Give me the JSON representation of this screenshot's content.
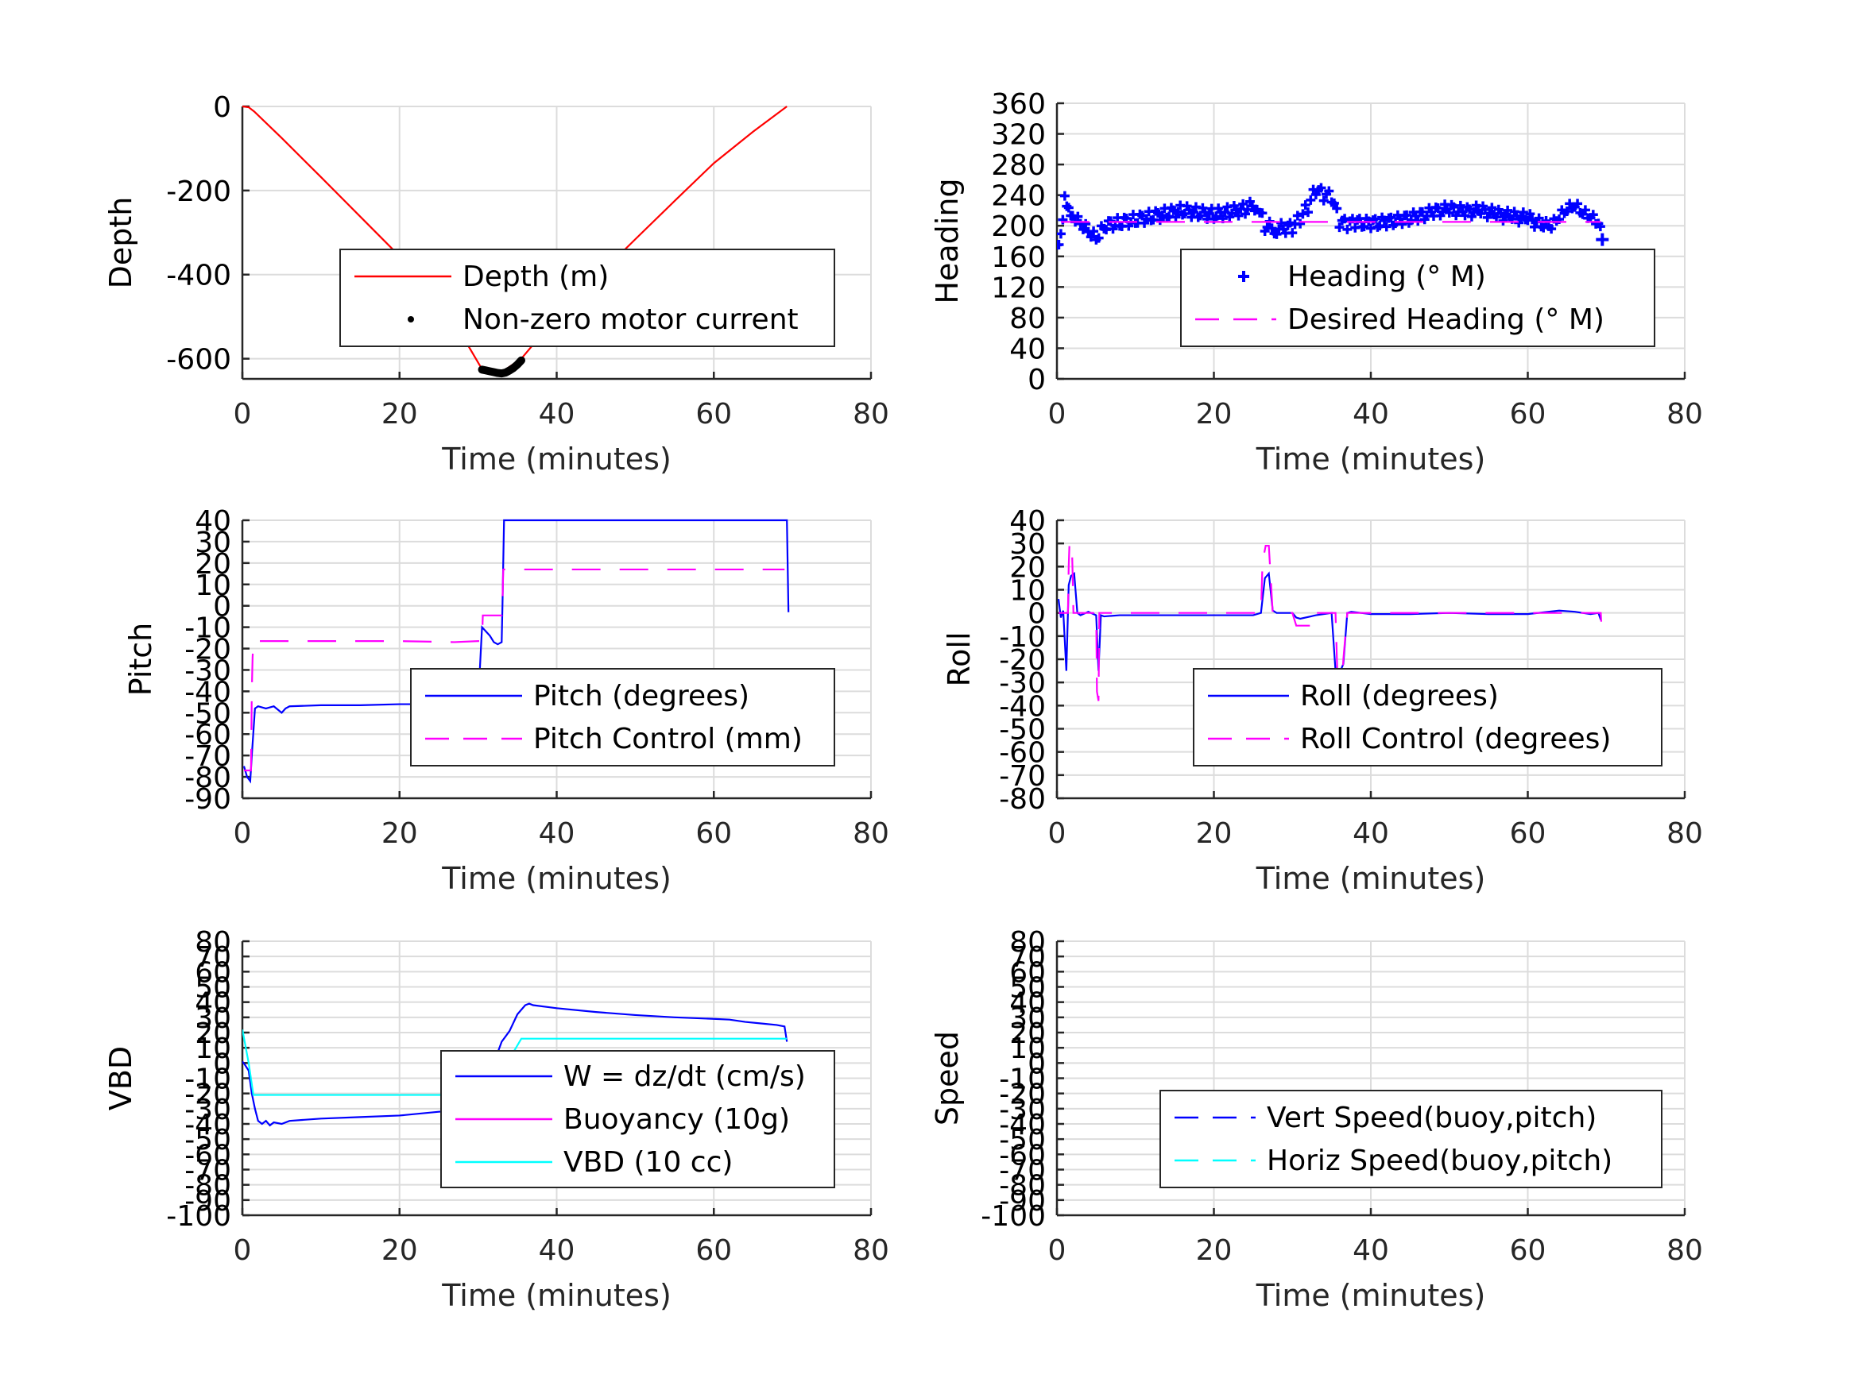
{
  "chart_data": [
    {
      "id": "depth",
      "type": "line",
      "title": "",
      "xlabel": "Time (minutes)",
      "ylabel": "Depth",
      "xlim": [
        0,
        80
      ],
      "ylim": [
        -648,
        0
      ],
      "xticks": [
        0,
        20,
        40,
        60,
        80
      ],
      "yticks": [
        0,
        -200,
        -400,
        -600
      ],
      "ytick_labels": [
        "0",
        "-200",
        "-400",
        "-600"
      ],
      "grid": true,
      "legend": "center-right",
      "series": [
        {
          "name": "Depth (m)",
          "color": "#ff0000",
          "style": "solid",
          "marker": "none",
          "x": [
            0,
            0.8,
            1.5,
            5,
            10,
            15,
            20,
            25,
            30.5,
            33,
            35.5,
            40,
            45,
            50,
            55,
            60,
            65,
            69.3
          ],
          "y": [
            0,
            -2,
            -12,
            -75,
            -168,
            -262,
            -356,
            -450,
            -625,
            -632,
            -600,
            -500,
            -408,
            -316,
            -225,
            -135,
            -60,
            0
          ]
        },
        {
          "name": "Non-zero motor current",
          "color": "#000000",
          "style": "none",
          "marker": "dot",
          "x": [
            30.5,
            31,
            31.5,
            32,
            32.5,
            33,
            33.5,
            34,
            34.5,
            35,
            35.5
          ],
          "y": [
            -626,
            -628,
            -630,
            -632,
            -634,
            -635,
            -633,
            -628,
            -622,
            -614,
            -604
          ]
        }
      ]
    },
    {
      "id": "heading",
      "type": "scatter",
      "title": "",
      "xlabel": "Time (minutes)",
      "ylabel": "Heading",
      "xlim": [
        0,
        80
      ],
      "ylim": [
        0,
        360
      ],
      "xticks": [
        0,
        20,
        40,
        60,
        80
      ],
      "yticks": [
        0,
        40,
        80,
        120,
        160,
        200,
        240,
        280,
        320,
        360
      ],
      "ytick_labels": [
        "0",
        "40",
        "80",
        "120",
        "160",
        "200",
        "240",
        "280",
        "320",
        "360"
      ],
      "grid": true,
      "legend": "center-right",
      "series": [
        {
          "name": "Heading (° M)",
          "color": "#0000ff",
          "style": "none",
          "marker": "plus",
          "x": [
            0,
            0.5,
            1,
            1.5,
            2,
            3,
            4,
            5,
            6,
            8,
            10,
            12,
            14,
            16,
            18,
            20,
            22,
            24,
            25.5,
            26.5,
            28,
            30,
            31,
            32,
            33,
            34,
            35,
            36,
            37,
            38,
            40,
            42,
            44,
            46,
            48,
            50,
            52,
            54,
            56,
            58,
            60,
            62,
            63,
            64,
            65,
            66,
            67,
            68,
            69,
            69.5
          ],
          "y": [
            175,
            190,
            240,
            225,
            215,
            205,
            195,
            185,
            200,
            204,
            208,
            212,
            216,
            220,
            217,
            215,
            218,
            222,
            228,
            200,
            196,
            198,
            210,
            225,
            248,
            240,
            238,
            205,
            202,
            204,
            203,
            205,
            208,
            212,
            218,
            222,
            218,
            220,
            215,
            212,
            210,
            200,
            198,
            210,
            220,
            225,
            215,
            210,
            202,
            182
          ]
        },
        {
          "name": "Desired Heading (° M)",
          "color": "#ff00ff",
          "style": "dashed",
          "marker": "none",
          "x": [
            0.5,
            69.3
          ],
          "y": [
            205,
            205
          ]
        }
      ]
    },
    {
      "id": "pitch",
      "type": "line",
      "title": "",
      "xlabel": "Time (minutes)",
      "ylabel": "Pitch",
      "xlim": [
        0,
        80
      ],
      "ylim": [
        -90,
        40
      ],
      "xticks": [
        0,
        20,
        40,
        60,
        80
      ],
      "yticks": [
        40,
        30,
        20,
        10,
        0,
        -10,
        -20,
        -30,
        -40,
        -50,
        -60,
        -70,
        -80,
        -90
      ],
      "ytick_labels": [
        "40",
        "30",
        "20",
        "10",
        "0",
        "-10",
        "-20",
        "-30",
        "-40",
        "-50",
        "-60",
        "-70",
        "-80",
        "-90"
      ],
      "grid": true,
      "legend": "center-right",
      "series": [
        {
          "name": "Pitch (degrees)",
          "color": "#0000ff",
          "style": "solid",
          "marker": "none",
          "x": [
            0.2,
            0.6,
            1.0,
            1.2,
            1.6,
            2,
            3,
            4,
            5,
            5.5,
            6,
            10,
            15,
            20,
            25,
            26.5,
            27,
            28,
            30,
            30.5,
            31,
            31.5,
            32,
            32.5,
            33,
            33.1,
            33.3,
            69.3,
            69.5
          ],
          "y": [
            -75,
            -80,
            -82,
            -70,
            -48,
            -47,
            -48,
            -47,
            -50,
            -48,
            -47,
            -46.5,
            -46.5,
            -46,
            -46,
            -44,
            -45,
            -45.5,
            -45.5,
            -10,
            -12,
            -14,
            -17,
            -18,
            -17,
            0,
            40,
            40,
            -3
          ]
        },
        {
          "name": "Pitch Control (mm)",
          "color": "#ff00ff",
          "style": "dashed",
          "marker": "none",
          "x": [
            0.2,
            1.1,
            1.2,
            1.3,
            1.4,
            5,
            10,
            20,
            27,
            30,
            30.5,
            30.6,
            33,
            33.1,
            33.2,
            35,
            50,
            69
          ],
          "y": [
            -77,
            -77,
            -40,
            -24,
            -16.5,
            -16.5,
            -16.5,
            -16.5,
            -17,
            -16.5,
            -16.5,
            -4.5,
            -4.5,
            1,
            17,
            17,
            17,
            17
          ]
        }
      ]
    },
    {
      "id": "roll",
      "type": "line",
      "title": "",
      "xlabel": "Time (minutes)",
      "ylabel": "Roll",
      "xlim": [
        0,
        80
      ],
      "ylim": [
        -80,
        40
      ],
      "xticks": [
        0,
        20,
        40,
        60,
        80
      ],
      "yticks": [
        40,
        30,
        20,
        10,
        0,
        -10,
        -20,
        -30,
        -40,
        -50,
        -60,
        -70,
        -80
      ],
      "ytick_labels": [
        "40",
        "30",
        "20",
        "10",
        "0",
        "-10",
        "-20",
        "-30",
        "-40",
        "-50",
        "-60",
        "-70",
        "-80"
      ],
      "grid": true,
      "legend": "center-right",
      "series": [
        {
          "name": "Roll (degrees)",
          "color": "#0000ff",
          "style": "solid",
          "marker": "none",
          "x": [
            0.2,
            0.5,
            0.8,
            1.2,
            1.5,
            1.8,
            2.2,
            2.6,
            3,
            4,
            5,
            5.3,
            5.6,
            6,
            8,
            10,
            15,
            20,
            25,
            26,
            26.5,
            27,
            27.5,
            28,
            30,
            30.5,
            31,
            33,
            35,
            35.5,
            36,
            36.5,
            37,
            37.5,
            40,
            45,
            50,
            55,
            60,
            64,
            66,
            68,
            69,
            69.3
          ],
          "y": [
            6,
            -2,
            1,
            -25,
            12,
            16,
            17,
            0,
            -1,
            0.5,
            -1,
            -25,
            -1,
            -1.5,
            -1,
            -1,
            -1,
            -1,
            -1,
            0,
            15,
            17,
            1,
            0,
            0,
            -2,
            -2.5,
            -1,
            0,
            -25,
            -26,
            -22,
            0,
            0.5,
            -0.5,
            -0.5,
            0,
            -0.5,
            -0.5,
            1,
            0.5,
            -0.5,
            0,
            -3
          ]
        },
        {
          "name": "Roll Control (degrees)",
          "color": "#ff00ff",
          "style": "dashed",
          "marker": "none",
          "x": [
            0.2,
            1.4,
            1.5,
            1.6,
            1.9,
            2.0,
            2.1,
            5,
            5.1,
            5.3,
            5.4,
            26,
            26.2,
            26.6,
            27,
            27.5,
            30,
            30.5,
            33,
            33.1,
            35.5,
            35.8,
            36.2,
            36.5,
            37,
            40,
            69.3,
            69.4
          ],
          "y": [
            0,
            0,
            20,
            30,
            30,
            17,
            0,
            0,
            -34,
            -38,
            0,
            0,
            22,
            29,
            29,
            0,
            0,
            -5.5,
            -5.5,
            0,
            0,
            -34,
            -38,
            -20,
            0,
            0,
            0,
            -6
          ]
        }
      ]
    },
    {
      "id": "vbd",
      "type": "line",
      "title": "",
      "xlabel": "Time (minutes)",
      "ylabel": "VBD",
      "xlim": [
        0,
        80
      ],
      "ylim": [
        -100,
        80
      ],
      "xticks": [
        0,
        20,
        40,
        60,
        80
      ],
      "yticks": [
        80,
        70,
        60,
        50,
        40,
        30,
        20,
        10,
        0,
        -10,
        -20,
        -30,
        -40,
        -50,
        -60,
        -70,
        -80,
        -90,
        -100
      ],
      "ytick_labels": [
        "80",
        "70",
        "60",
        "50",
        "40",
        "30",
        "20",
        "10",
        "0",
        "-10",
        "-20",
        "-30",
        "-40",
        "-50",
        "-60",
        "-70",
        "-80",
        "-90",
        "-100"
      ],
      "ytick_labels_overlapped": true,
      "grid": true,
      "legend": "center-right",
      "series": [
        {
          "name": "W = dz/dt (cm/s)",
          "color": "#0000ff",
          "style": "solid",
          "marker": "none",
          "x": [
            0,
            0.3,
            0.8,
            1.2,
            1.6,
            2,
            2.5,
            3,
            3.5,
            4,
            5,
            6,
            10,
            15,
            20,
            25,
            28,
            30,
            30.5,
            31,
            32,
            33,
            34,
            35,
            36,
            36.5,
            37,
            40,
            45,
            50,
            55,
            60,
            62,
            64,
            66,
            68,
            69,
            69.3
          ],
          "y": [
            1,
            -1,
            -5,
            -20,
            -30,
            -38,
            -40,
            -38,
            -41,
            -39,
            -40,
            -38,
            -36.5,
            -35.5,
            -34.5,
            -32,
            -31,
            -31,
            -20,
            -4,
            0,
            14,
            21,
            32,
            38,
            39,
            38,
            36,
            33.5,
            31.5,
            30,
            29,
            28.5,
            27,
            26,
            25,
            24,
            14
          ]
        },
        {
          "name": "Buoyancy (10g)",
          "color": "#ff00ff",
          "style": "solid",
          "marker": "none",
          "x": [],
          "y": []
        },
        {
          "name": "VBD (10 cc)",
          "color": "#00ffff",
          "style": "solid",
          "marker": "none",
          "x": [
            0,
            0.8,
            1.4,
            5,
            10,
            20,
            30,
            30.5,
            33,
            35.5,
            36,
            40,
            50,
            60,
            69.3
          ],
          "y": [
            22,
            0,
            -21,
            -21,
            -21,
            -21,
            -21,
            -21,
            -6,
            16,
            16,
            16,
            16,
            16,
            16
          ]
        }
      ]
    },
    {
      "id": "speed",
      "type": "line",
      "title": "",
      "xlabel": "Time (minutes)",
      "ylabel": "Speed",
      "xlim": [
        0,
        80
      ],
      "ylim": [
        -100,
        80
      ],
      "xticks": [
        0,
        20,
        40,
        60,
        80
      ],
      "yticks": [
        80,
        70,
        60,
        50,
        40,
        30,
        20,
        10,
        0,
        -10,
        -20,
        -30,
        -40,
        -50,
        -60,
        -70,
        -80,
        -90,
        -100
      ],
      "ytick_labels": [
        "80",
        "70",
        "60",
        "50",
        "40",
        "30",
        "20",
        "10",
        "0",
        "-10",
        "-20",
        "-30",
        "-40",
        "-50",
        "-60",
        "-70",
        "-80",
        "-90",
        "-100"
      ],
      "ytick_labels_overlapped": true,
      "grid": true,
      "legend": "center-right",
      "series": [
        {
          "name": "Vert Speed(buoy,pitch)",
          "color": "#0000ff",
          "style": "dashed",
          "marker": "none",
          "x": [],
          "y": []
        },
        {
          "name": "Horiz Speed(buoy,pitch)",
          "color": "#00ffff",
          "style": "dashed",
          "marker": "none",
          "x": [],
          "y": []
        }
      ]
    }
  ]
}
